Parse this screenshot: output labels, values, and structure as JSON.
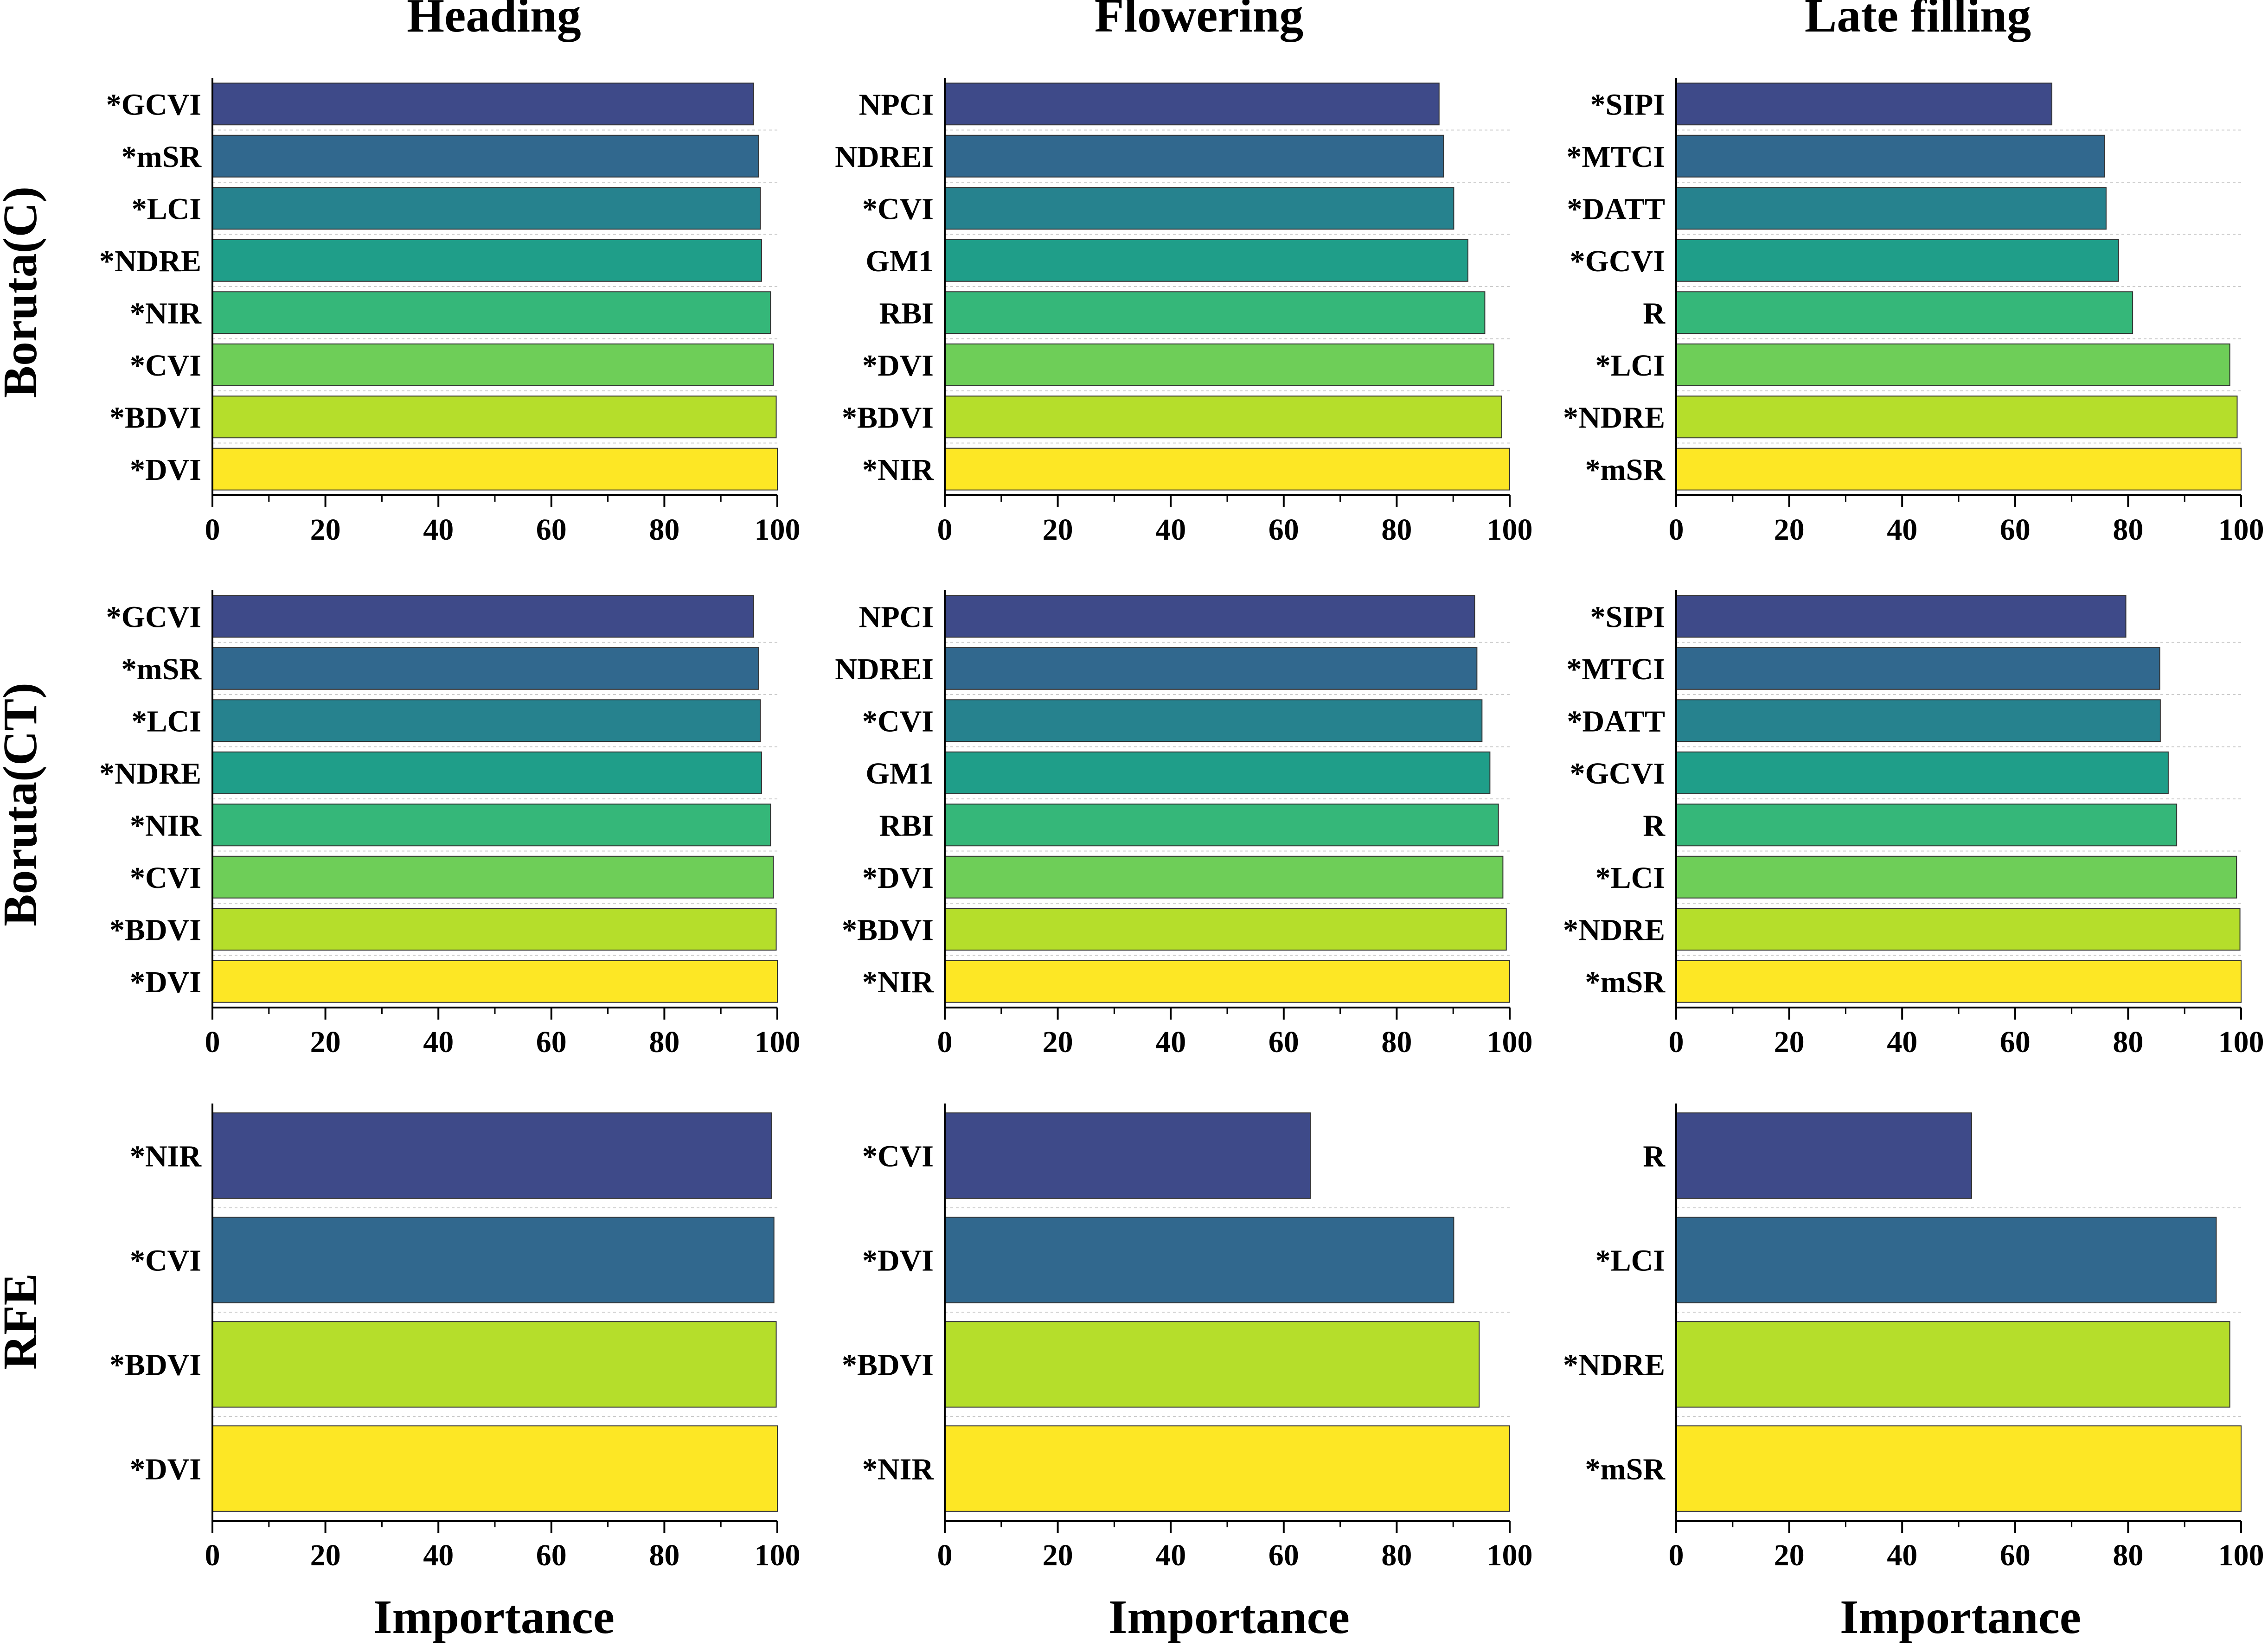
{
  "column_titles": [
    "Heading",
    "Flowering",
    "Late filling"
  ],
  "row_titles": [
    "Boruta(C)",
    "Boruta(CT)",
    "RFE"
  ],
  "x_axis_title": "Importance",
  "x_ticks": [
    "0",
    "20",
    "40",
    "60",
    "80",
    "100"
  ],
  "palette8": [
    "#3e4a89",
    "#31688e",
    "#26828e",
    "#1f9e89",
    "#35b779",
    "#6ece58",
    "#b5de2b",
    "#fde725"
  ],
  "palette4": [
    "#3e4a89",
    "#31688e",
    "#b5de2b",
    "#fde725"
  ],
  "chart_data": [
    {
      "type": "bar",
      "orientation": "horizontal",
      "row": "Boruta(C)",
      "column": "Heading",
      "xlim": [
        0,
        100
      ],
      "categories": [
        "*GCVI",
        "*mSR",
        "*LCI",
        "*NDRE",
        "*NIR",
        "*CVI",
        "*BDVI",
        "*DVI"
      ],
      "values": [
        95.8,
        96.7,
        97.0,
        97.2,
        98.8,
        99.3,
        99.8,
        100
      ]
    },
    {
      "type": "bar",
      "orientation": "horizontal",
      "row": "Boruta(C)",
      "column": "Flowering",
      "xlim": [
        0,
        100
      ],
      "categories": [
        "NPCI",
        "NDREI",
        "*CVI",
        "GM1",
        "RBI",
        "*DVI",
        "*BDVI",
        "*NIR"
      ],
      "values": [
        87.5,
        88.3,
        90.1,
        92.6,
        95.6,
        97.2,
        98.6,
        100
      ]
    },
    {
      "type": "bar",
      "orientation": "horizontal",
      "row": "Boruta(C)",
      "column": "Late filling",
      "xlim": [
        0,
        100
      ],
      "categories": [
        "*SIPI",
        "*MTCI",
        "*DATT",
        "*GCVI",
        "R",
        "*LCI",
        "*NDRE",
        "*mSR"
      ],
      "values": [
        66.5,
        75.8,
        76.1,
        78.3,
        80.8,
        98.0,
        99.3,
        100
      ]
    },
    {
      "type": "bar",
      "orientation": "horizontal",
      "row": "Boruta(CT)",
      "column": "Heading",
      "xlim": [
        0,
        100
      ],
      "categories": [
        "*GCVI",
        "*mSR",
        "*LCI",
        "*NDRE",
        "*NIR",
        "*CVI",
        "*BDVI",
        "*DVI"
      ],
      "values": [
        95.8,
        96.7,
        97.0,
        97.2,
        98.8,
        99.3,
        99.8,
        100
      ]
    },
    {
      "type": "bar",
      "orientation": "horizontal",
      "row": "Boruta(CT)",
      "column": "Flowering",
      "xlim": [
        0,
        100
      ],
      "categories": [
        "NPCI",
        "NDREI",
        "*CVI",
        "GM1",
        "RBI",
        "*DVI",
        "*BDVI",
        "*NIR"
      ],
      "values": [
        93.8,
        94.2,
        95.1,
        96.5,
        98.0,
        98.8,
        99.4,
        100
      ]
    },
    {
      "type": "bar",
      "orientation": "horizontal",
      "row": "Boruta(CT)",
      "column": "Late filling",
      "xlim": [
        0,
        100
      ],
      "categories": [
        "*SIPI",
        "*MTCI",
        "*DATT",
        "*GCVI",
        "R",
        "*LCI",
        "*NDRE",
        "*mSR"
      ],
      "values": [
        79.6,
        85.6,
        85.7,
        87.1,
        88.6,
        99.2,
        99.8,
        100
      ]
    },
    {
      "type": "bar",
      "orientation": "horizontal",
      "row": "RFE",
      "column": "Heading",
      "xlim": [
        0,
        100
      ],
      "categories": [
        "*NIR",
        "*CVI",
        "*BDVI",
        "*DVI"
      ],
      "values": [
        99.0,
        99.4,
        99.8,
        100
      ]
    },
    {
      "type": "bar",
      "orientation": "horizontal",
      "row": "RFE",
      "column": "Flowering",
      "xlim": [
        0,
        100
      ],
      "categories": [
        "*CVI",
        "*DVI",
        "*BDVI",
        "*NIR"
      ],
      "values": [
        64.7,
        90.1,
        94.6,
        100
      ]
    },
    {
      "type": "bar",
      "orientation": "horizontal",
      "row": "RFE",
      "column": "Late filling",
      "xlim": [
        0,
        100
      ],
      "categories": [
        "R",
        "*LCI",
        "*NDRE",
        "*mSR"
      ],
      "values": [
        52.3,
        95.6,
        98.0,
        100
      ]
    }
  ]
}
